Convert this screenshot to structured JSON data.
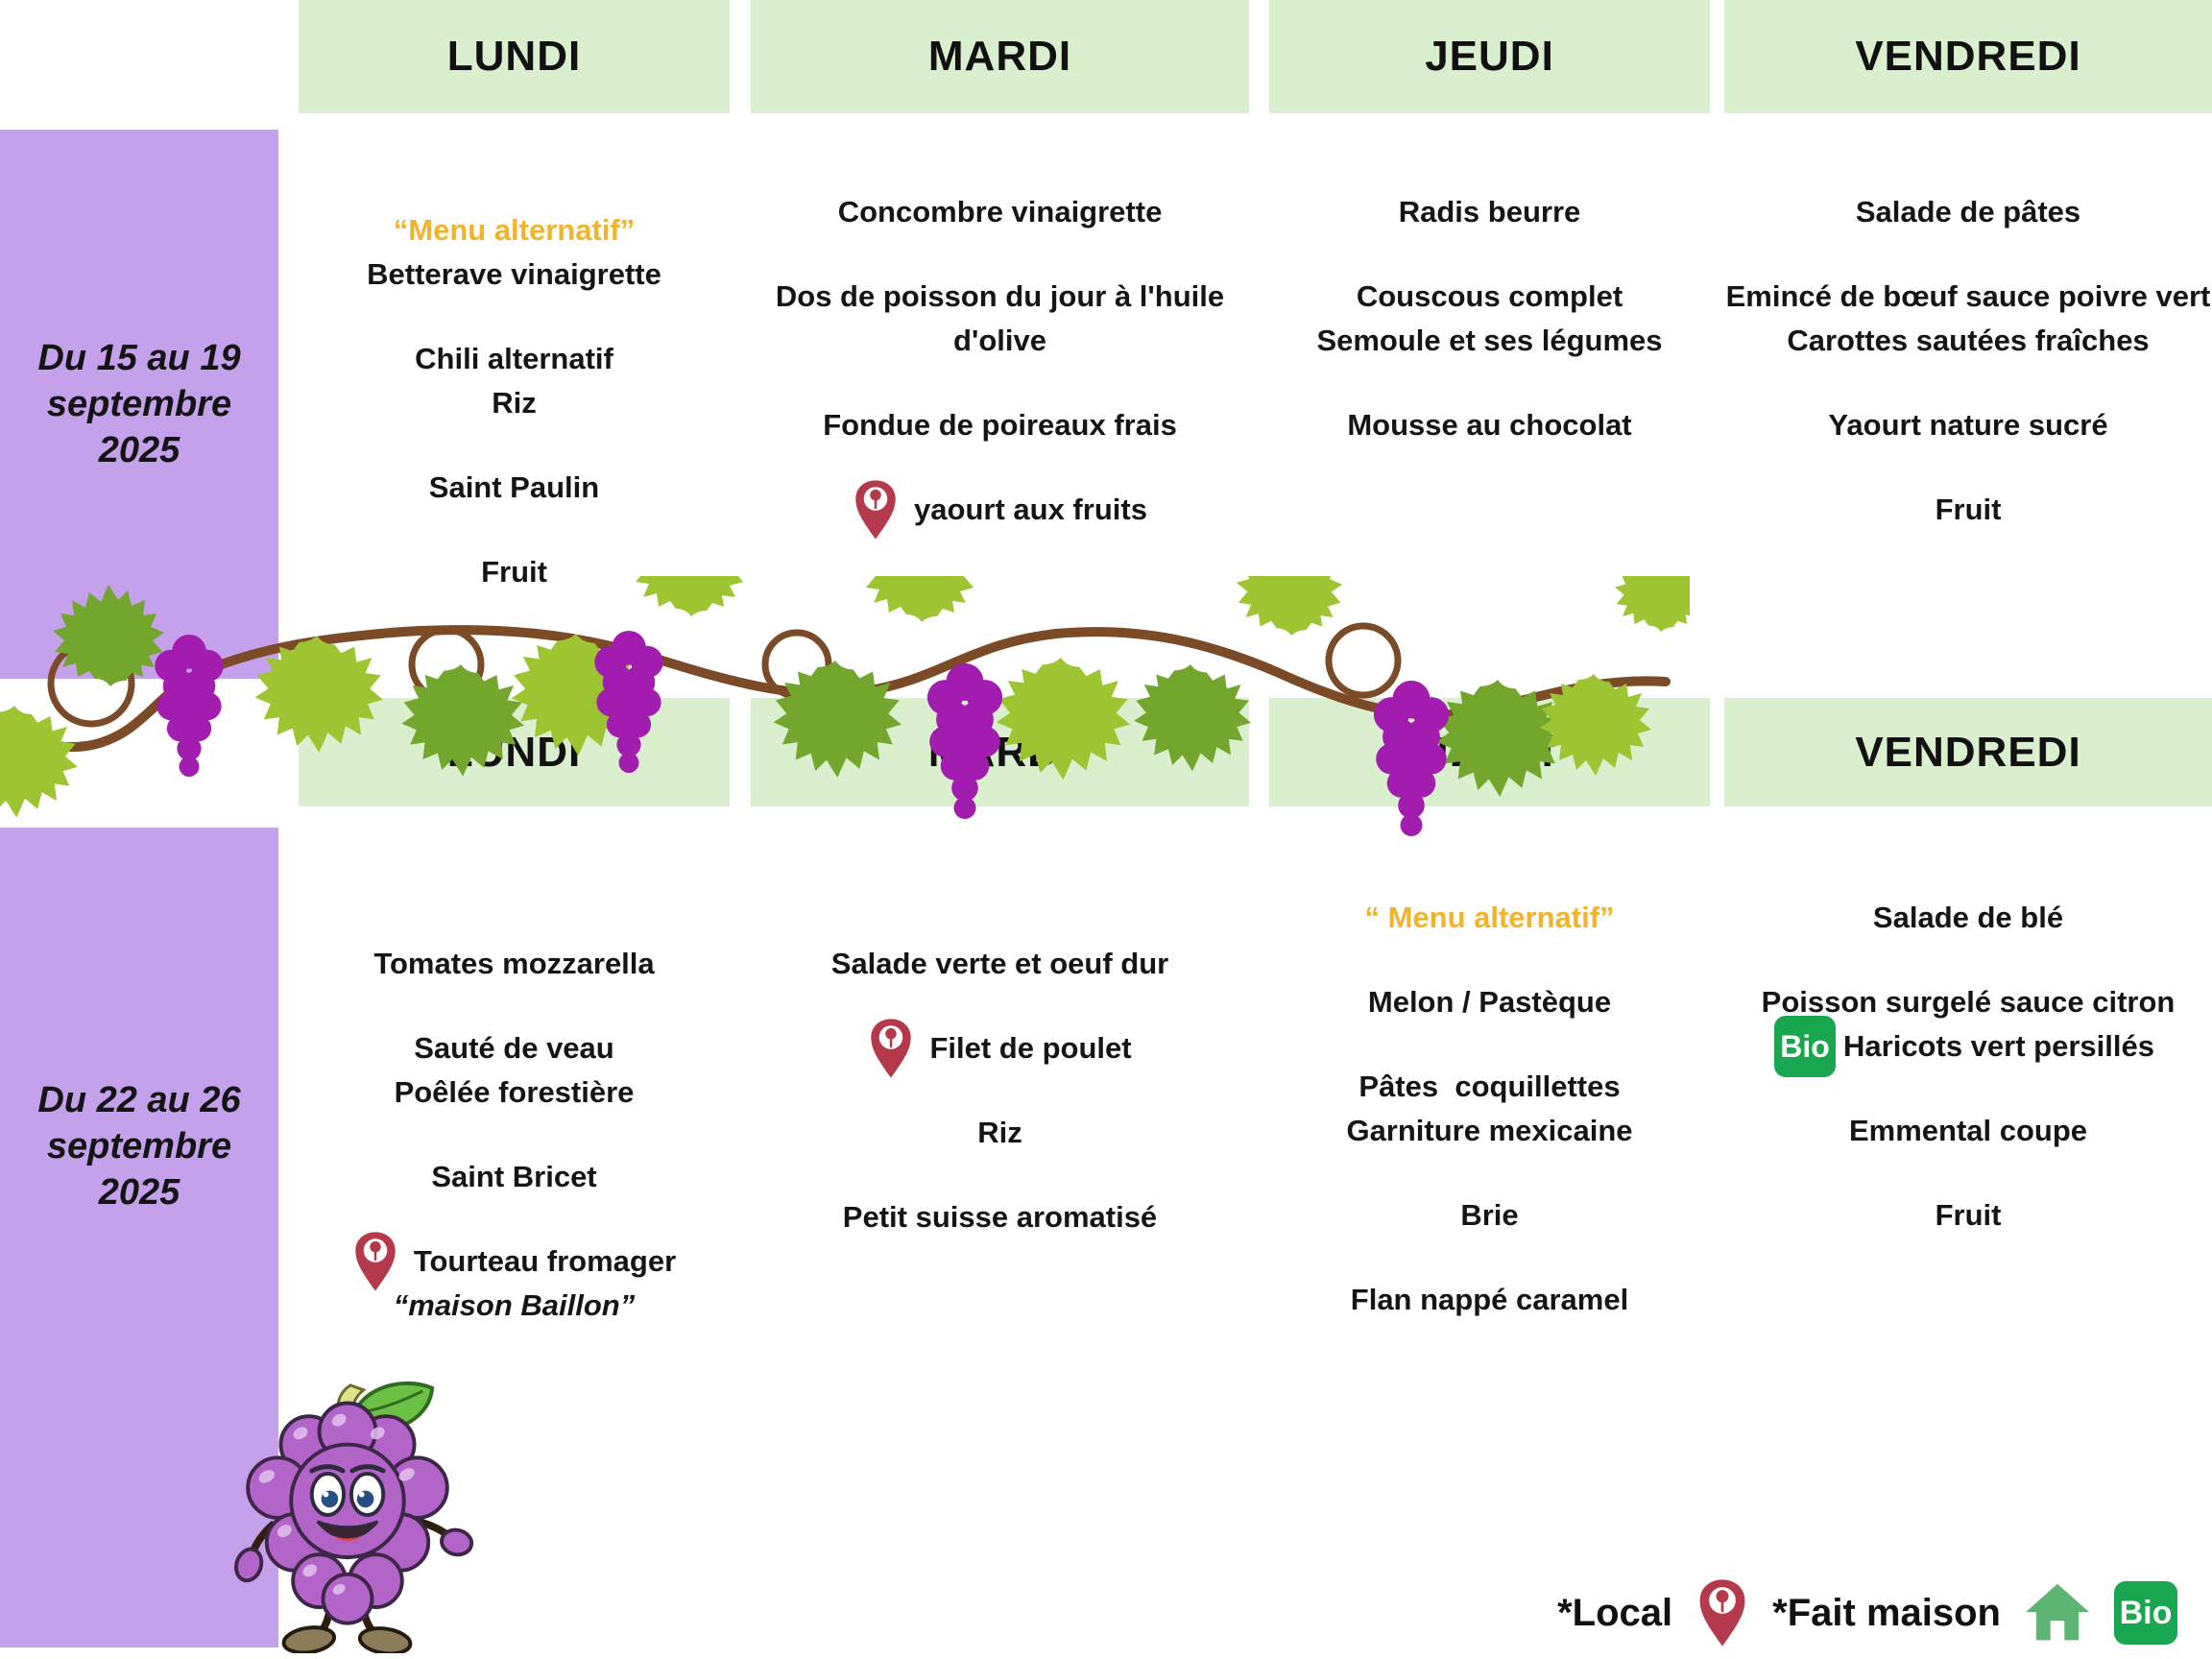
{
  "columns": [
    "LUNDI",
    "MARDI",
    "JEUDI",
    "VENDREDI"
  ],
  "weeks": [
    {
      "label": "Du 15 au 19 septembre 2025",
      "days": [
        {
          "day": "LUNDI",
          "items": [
            {
              "text": "“Menu alternatif”",
              "accent": true
            },
            {
              "text": "Betterave vinaigrette"
            },
            {
              "text": "Chili alternatif",
              "new_group": true
            },
            {
              "text": "Riz"
            },
            {
              "text": "Saint Paulin",
              "new_group": true
            },
            {
              "text": "Fruit",
              "new_group": true
            }
          ]
        },
        {
          "day": "MARDI",
          "items": [
            {
              "text": "Concombre vinaigrette"
            },
            {
              "text": "Dos de poisson du jour à l'huile d'olive",
              "new_group": true
            },
            {
              "text": "Fondue de poireaux frais",
              "new_group": true
            },
            {
              "text": "yaourt aux fruits",
              "icon": "local-pin",
              "new_group": true
            }
          ]
        },
        {
          "day": "JEUDI",
          "items": [
            {
              "text": "Radis beurre"
            },
            {
              "text": "Couscous complet",
              "new_group": true
            },
            {
              "text": "Semoule et ses légumes"
            },
            {
              "text": "Mousse au chocolat",
              "new_group": true
            }
          ]
        },
        {
          "day": "VENDREDI",
          "items": [
            {
              "text": "Salade de pâtes"
            },
            {
              "text": "Emincé de bœuf sauce poivre vert",
              "new_group": true
            },
            {
              "text": "Carottes sautées fraîches"
            },
            {
              "text": "Yaourt nature sucré",
              "new_group": true
            },
            {
              "text": "Fruit",
              "new_group": true
            }
          ]
        }
      ]
    },
    {
      "label": "Du 22 au 26 septembre 2025",
      "days": [
        {
          "day": "LUNDI",
          "items": [
            {
              "text": "Tomates mozzarella"
            },
            {
              "text": "Sauté de veau",
              "new_group": true
            },
            {
              "text": "Poêlée forestière"
            },
            {
              "text": "Saint Bricet",
              "new_group": true
            },
            {
              "text": "Tourteau fromager",
              "icon": "local-pin",
              "new_group": true
            },
            {
              "text": "“maison Baillon”",
              "italic": true
            }
          ]
        },
        {
          "day": "MARDI",
          "items": [
            {
              "text": "Salade verte et oeuf dur"
            },
            {
              "text": "Filet de poulet",
              "icon": "local-pin",
              "new_group": true
            },
            {
              "text": "Riz",
              "new_group": true
            },
            {
              "text": "Petit suisse aromatisé",
              "new_group": true
            }
          ]
        },
        {
          "day": "JEUDI",
          "items": [
            {
              "text": "“ Menu alternatif”",
              "accent": true
            },
            {
              "text": "Melon / Pastèque",
              "new_group": true
            },
            {
              "text": "Pâtes  coquillettes",
              "new_group": true
            },
            {
              "text": "Garniture mexicaine"
            },
            {
              "text": "Brie",
              "new_group": true
            },
            {
              "text": "Flan nappé caramel",
              "new_group": true
            }
          ]
        },
        {
          "day": "VENDREDI",
          "items": [
            {
              "text": "Salade de blé"
            },
            {
              "text": "Poisson surgelé sauce citron",
              "new_group": true
            },
            {
              "text": "Haricots vert persillés",
              "icon": "bio"
            },
            {
              "text": "Emmental coupe",
              "new_group": true
            },
            {
              "text": "Fruit",
              "new_group": true
            }
          ]
        }
      ]
    }
  ],
  "legend": {
    "local_label": "*Local",
    "fait_maison_label": "*Fait maison",
    "bio_label": "Bio"
  },
  "colors": {
    "header_green": "#d9efce",
    "purple": "#c5a1ec",
    "accent_orange": "#f2b32c",
    "text": "#151515",
    "pin_red": "#b4394a",
    "bio_green": "#18a74e",
    "house_green": "#5cb572",
    "vine_stem": "#7b4a27",
    "leaf_light": "#9cc531",
    "leaf_dark": "#72a62c",
    "grape_purple": "#a21caf"
  }
}
